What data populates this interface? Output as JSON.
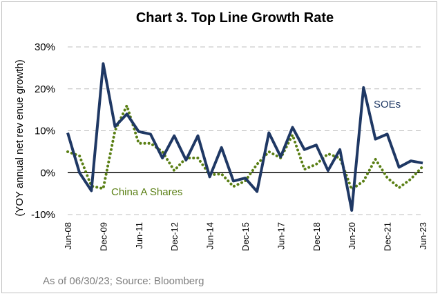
{
  "chart_data": {
    "type": "line",
    "title": "Chart 3. Top Line Growth Rate",
    "ylabel": "(YOY annual net rev enue growth)",
    "ylim": [
      -10,
      30
    ],
    "yticks": [
      -10,
      0,
      10,
      20,
      30
    ],
    "ytick_labels": [
      "-10%",
      "0%",
      "10%",
      "20%",
      "30%"
    ],
    "grid": "horizontal dashed",
    "x_tick_labels": [
      "Jun-08",
      "Dec-09",
      "Jun-11",
      "Dec-12",
      "Jun-14",
      "Dec-15",
      "Jun-17",
      "Dec-18",
      "Jun-20",
      "Dec-21",
      "Jun-23"
    ],
    "x": [
      "Jun-08",
      "Dec-08",
      "Jun-09",
      "Dec-09",
      "Jun-10",
      "Dec-10",
      "Jun-11",
      "Dec-11",
      "Jun-12",
      "Dec-12",
      "Jun-13",
      "Dec-13",
      "Jun-14",
      "Dec-14",
      "Jun-15",
      "Dec-15",
      "Jun-16",
      "Dec-16",
      "Jun-17",
      "Dec-17",
      "Jun-18",
      "Dec-18",
      "Jun-19",
      "Dec-19",
      "Jun-20",
      "Dec-20",
      "Jun-21",
      "Dec-21",
      "Jun-22",
      "Dec-22",
      "Jun-23"
    ],
    "series": [
      {
        "name": "SOEs",
        "color": "#1f3864",
        "style": "solid",
        "values": [
          9.5,
          0.0,
          -4.3,
          26.0,
          11.0,
          14.0,
          9.8,
          9.2,
          3.5,
          8.8,
          3.0,
          8.8,
          -1.0,
          6.0,
          -2.0,
          -1.3,
          -4.5,
          9.5,
          3.8,
          10.8,
          5.5,
          6.6,
          0.5,
          5.5,
          -9.0,
          20.3,
          8.0,
          9.2,
          1.3,
          2.8,
          2.3
        ]
      },
      {
        "name": "China A Shares",
        "color": "#5a7f14",
        "style": "dotted",
        "values": [
          5.0,
          4.0,
          -3.2,
          -3.8,
          10.0,
          16.0,
          7.0,
          7.0,
          5.0,
          0.5,
          3.5,
          3.5,
          -0.5,
          -0.3,
          -3.3,
          -2.0,
          2.0,
          5.0,
          3.5,
          9.0,
          0.8,
          2.0,
          4.5,
          3.5,
          -4.0,
          -2.0,
          3.2,
          -1.2,
          -3.6,
          -1.5,
          1.5
        ]
      }
    ],
    "annotations": [
      {
        "text": "SOEs",
        "series": "SOEs"
      },
      {
        "text": "China A Shares",
        "series": "China A Shares"
      }
    ]
  },
  "footer": {
    "source": "As of 06/30/23; Source: Bloomberg"
  }
}
